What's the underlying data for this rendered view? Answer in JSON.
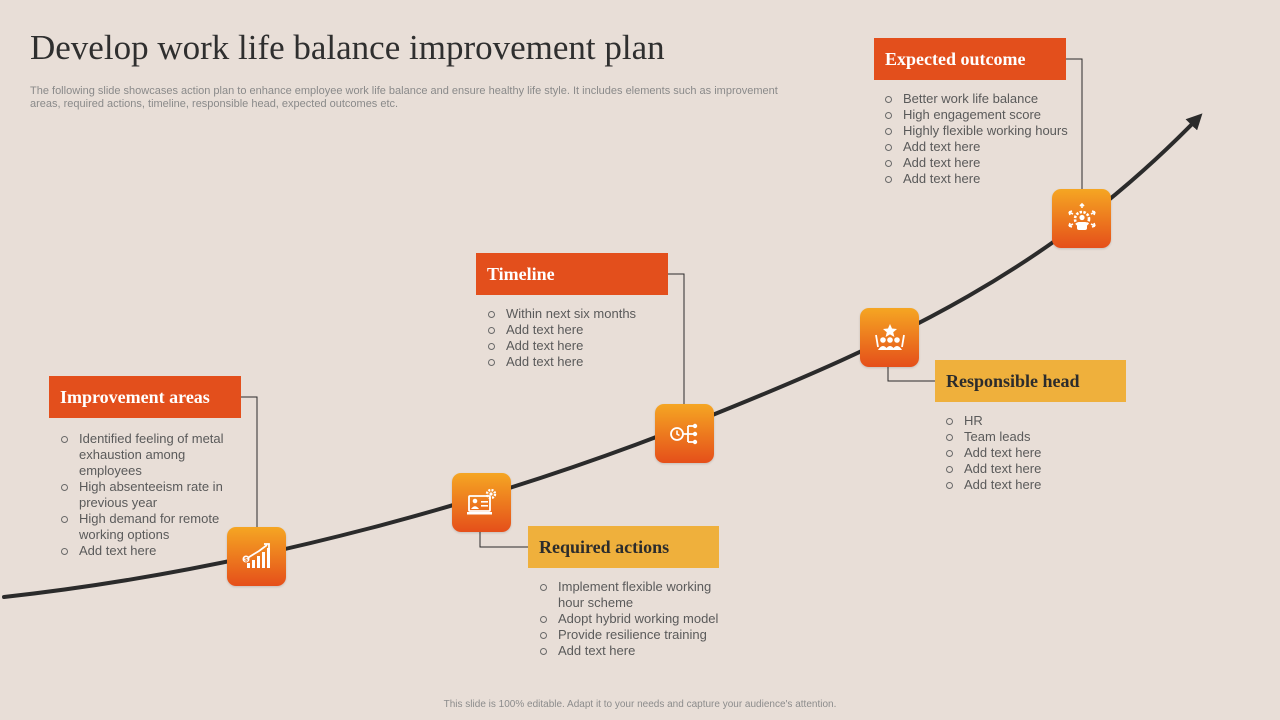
{
  "header": {
    "title": "Develop work life balance improvement plan",
    "description": "The following slide showcases action plan to enhance employee work life balance and ensure healthy life style. It includes elements such as improvement areas, required actions, timeline, responsible head, expected outcomes etc."
  },
  "colors": {
    "background": "#e8ded7",
    "accent_red": "#e34f1c",
    "accent_yellow": "#efb03c",
    "tile_gradient_top": "#f5a623",
    "tile_gradient_bottom": "#e54f1a",
    "curve": "#2b2b2b"
  },
  "steps": {
    "improvement_areas": {
      "label": "Improvement areas",
      "icon": "growth-chart-icon",
      "items": [
        "Identified feeling of metal exhaustion among employees",
        "High absenteeism rate in previous year",
        "High demand for remote working options",
        "Add text here"
      ]
    },
    "required_actions": {
      "label": "Required actions",
      "icon": "computer-settings-icon",
      "items": [
        "Implement flexible working hour scheme",
        "Adopt hybrid working model",
        "Provide resilience training",
        "Add text here"
      ]
    },
    "timeline": {
      "label": "Timeline",
      "icon": "clock-timeline-icon",
      "items": [
        "Within next six months",
        "Add text here",
        "Add text here",
        "Add text here"
      ]
    },
    "responsible_head": {
      "label": "Responsible head",
      "icon": "team-leader-icon",
      "items": [
        "HR",
        "Team leads",
        "Add text here",
        "Add text here",
        "Add text here"
      ]
    },
    "expected_outcome": {
      "label": "Expected outcome",
      "icon": "person-gear-icon",
      "items": [
        "Better work life balance",
        "High engagement score",
        "Highly flexible working hours",
        "Add text here",
        "Add text here",
        "Add text here"
      ]
    }
  },
  "footer": {
    "note": "This slide is 100% editable. Adapt it to your needs and capture your audience's attention."
  }
}
